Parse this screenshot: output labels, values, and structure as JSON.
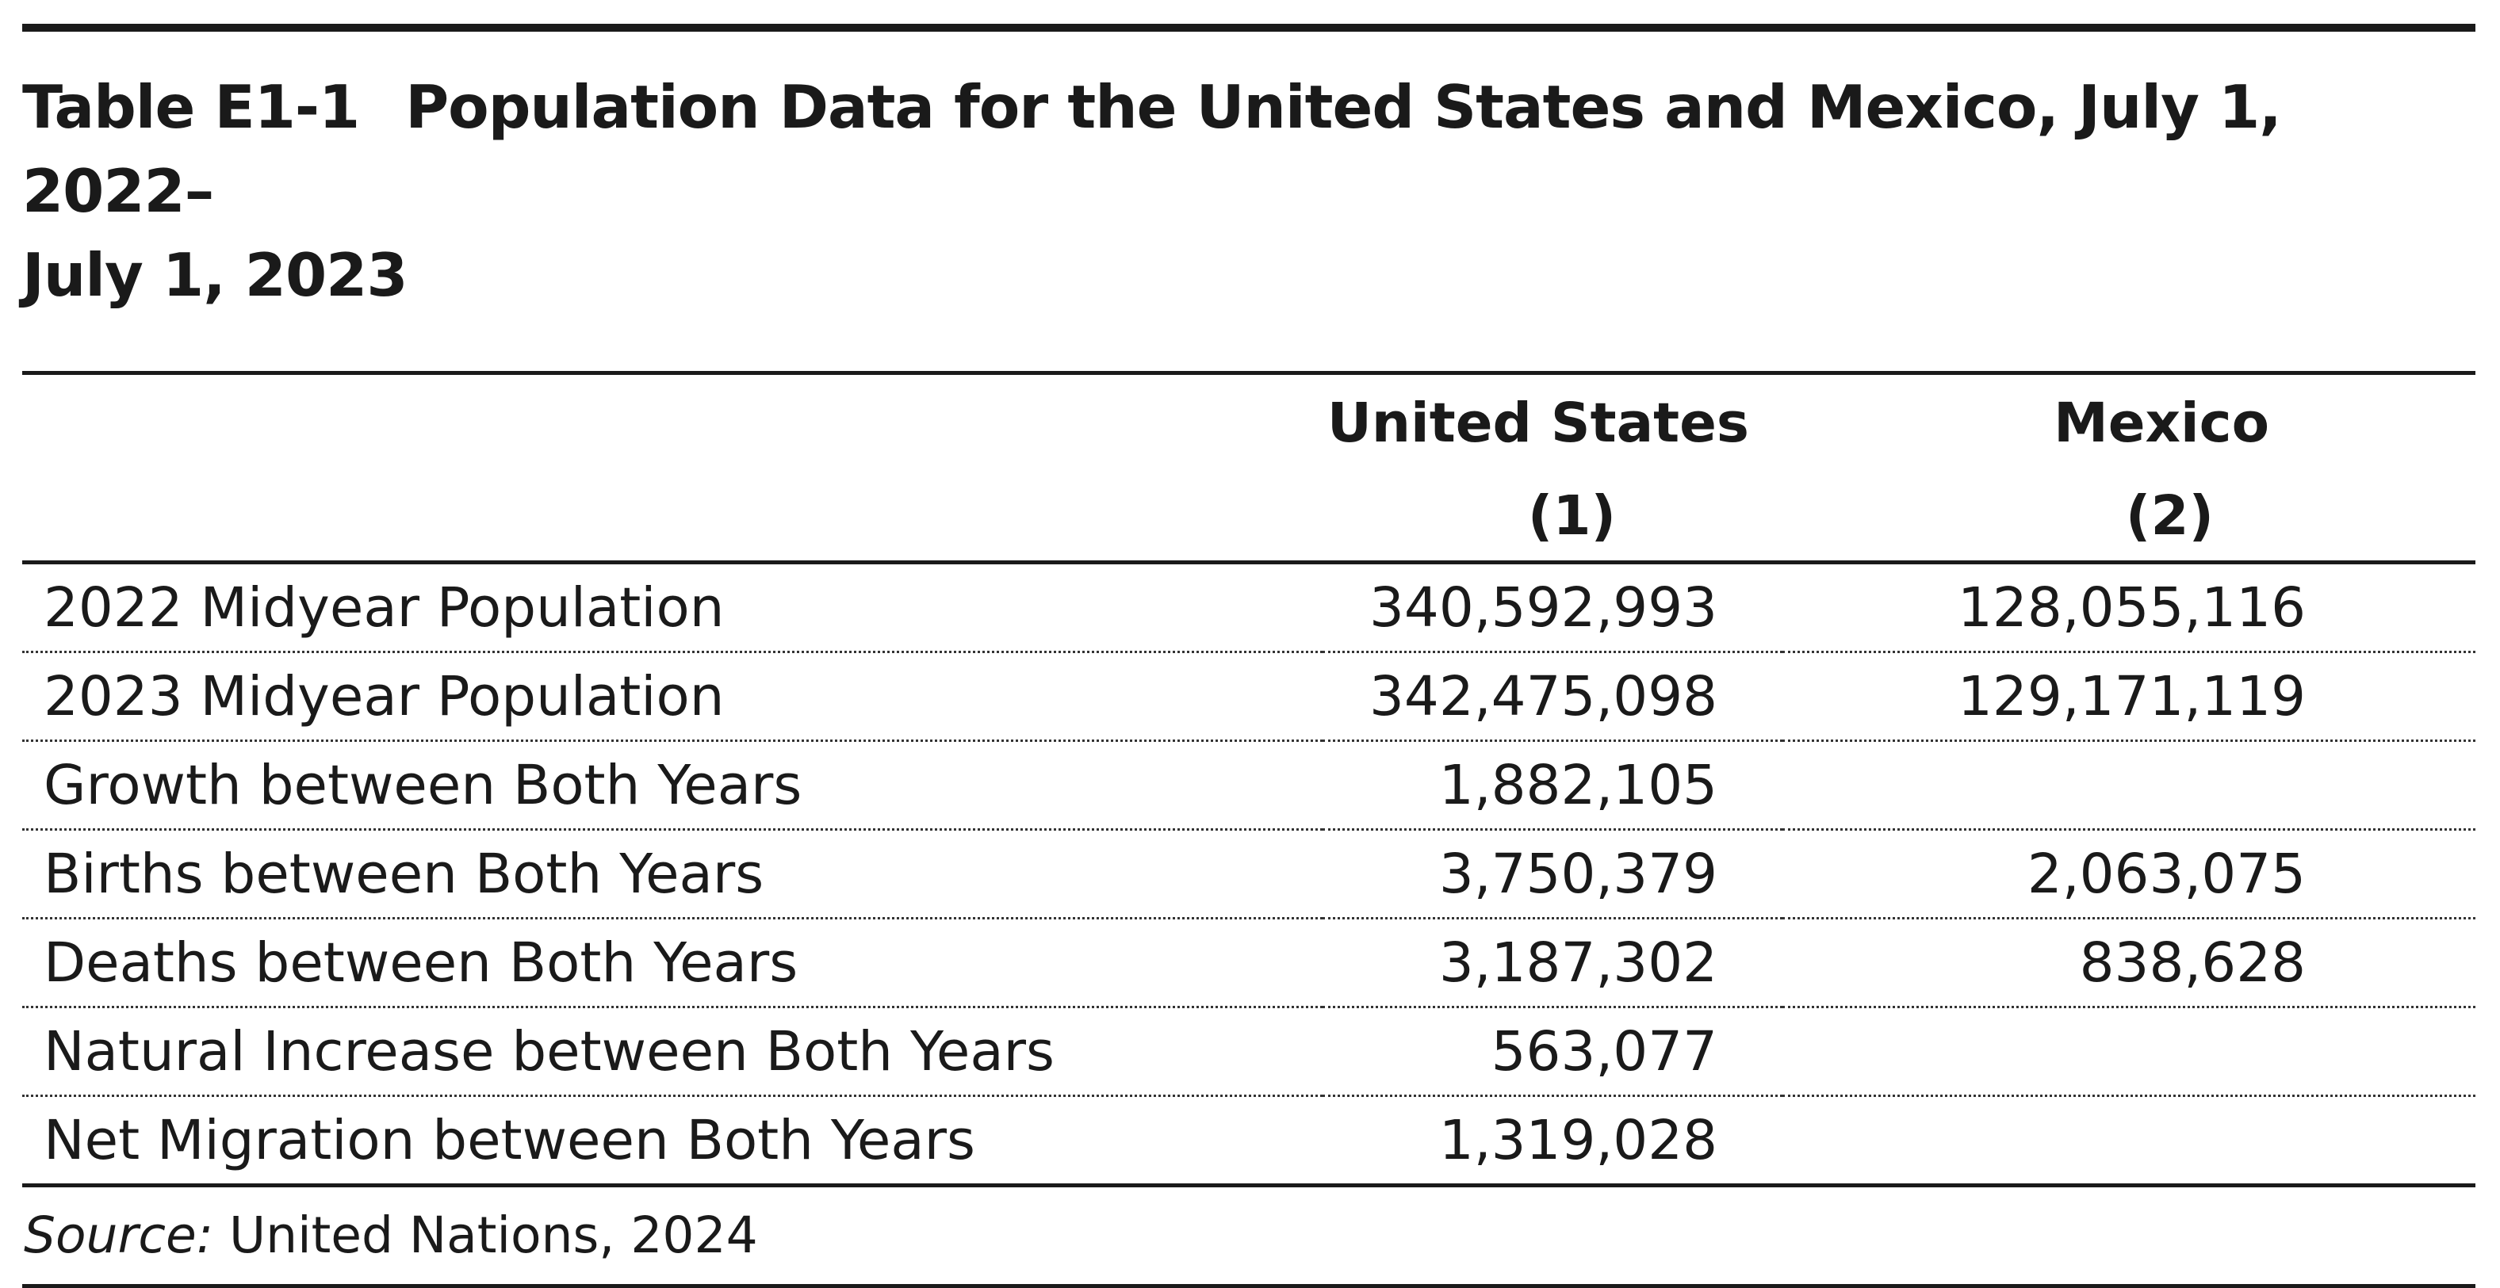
{
  "table": {
    "number": "Table E1-1",
    "title_line1": "Population Data for the United States and Mexico, July 1, 2022–",
    "title_line2": "July 1, 2023",
    "columns": [
      {
        "name": "United States",
        "index": "(1)"
      },
      {
        "name": "Mexico",
        "index": "(2)"
      }
    ],
    "rows": [
      {
        "label": "2022 Midyear Population",
        "us": "340,592,993",
        "mx": "128,055,116"
      },
      {
        "label": "2023 Midyear Population",
        "us": "342,475,098",
        "mx": "129,171,119"
      },
      {
        "label": "Growth between Both Years",
        "us": "1,882,105",
        "mx": ""
      },
      {
        "label": "Births between Both Years",
        "us": "3,750,379",
        "mx": "2,063,075"
      },
      {
        "label": "Deaths between Both Years",
        "us": "3,187,302",
        "mx": "838,628"
      },
      {
        "label": "Natural Increase between Both Years",
        "us": "563,077",
        "mx": ""
      },
      {
        "label": "Net Migration between Both Years",
        "us": "1,319,028",
        "mx": ""
      }
    ],
    "source_label": "Source:",
    "source_text": " United Nations, 2024"
  }
}
